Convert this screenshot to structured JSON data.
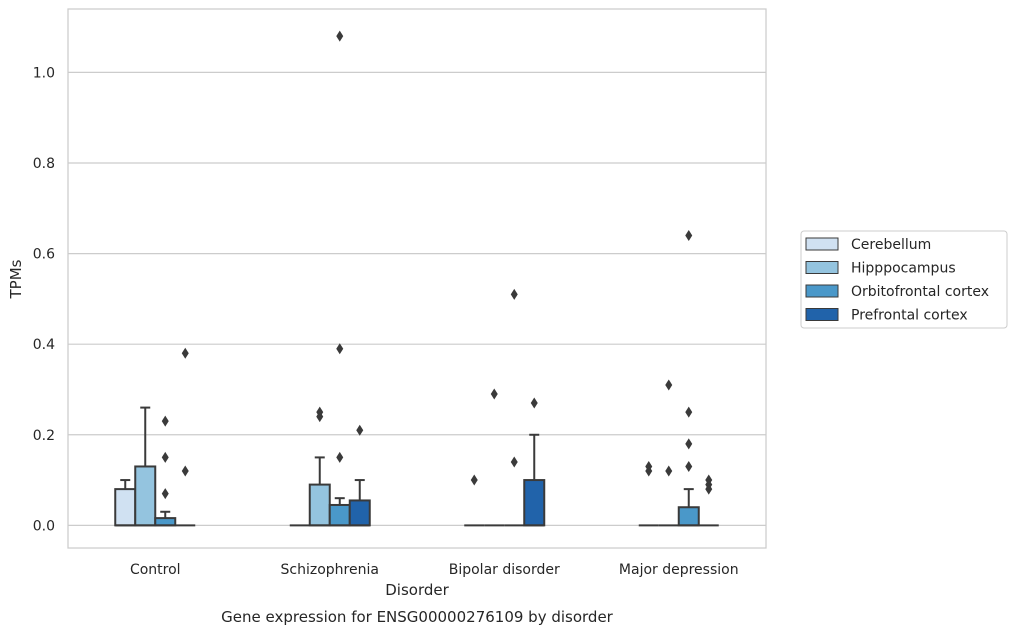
{
  "chart_data": {
    "type": "box",
    "caption": "Gene expression for ENSG00000276109 by disorder",
    "xlabel": "Disorder",
    "ylabel": "TPMs",
    "categories": [
      "Control",
      "Schizophrenia",
      "Bipolar disorder",
      "Major depression"
    ],
    "ylim": [
      -0.05,
      1.14
    ],
    "yticks": [
      0.0,
      0.2,
      0.4,
      0.6,
      0.8,
      1.0
    ],
    "ytick_labels": [
      "0.0",
      "0.2",
      "0.4",
      "0.6",
      "0.8",
      "1.0"
    ],
    "grid": true,
    "legend_position": "right",
    "series": [
      {
        "name": "Cerebellum",
        "color": "#d0e1f2",
        "boxes": [
          {
            "q1": 0.0,
            "median": 0.0,
            "q3": 0.08,
            "whisker_low": 0.0,
            "whisker_high": 0.1,
            "outliers": []
          },
          {
            "q1": 0.0,
            "median": 0.0,
            "q3": 0.0,
            "whisker_low": 0.0,
            "whisker_high": 0.0,
            "outliers": []
          },
          {
            "q1": 0.0,
            "median": 0.0,
            "q3": 0.0,
            "whisker_low": 0.0,
            "whisker_high": 0.0,
            "outliers": [
              0.1
            ]
          },
          {
            "q1": 0.0,
            "median": 0.0,
            "q3": 0.0,
            "whisker_low": 0.0,
            "whisker_high": 0.0,
            "outliers": [
              0.12,
              0.13
            ]
          }
        ]
      },
      {
        "name": "Hipppocampus",
        "color": "#94c4df",
        "boxes": [
          {
            "q1": 0.0,
            "median": 0.0,
            "q3": 0.13,
            "whisker_low": 0.0,
            "whisker_high": 0.26,
            "outliers": []
          },
          {
            "q1": 0.0,
            "median": 0.0,
            "q3": 0.09,
            "whisker_low": 0.0,
            "whisker_high": 0.15,
            "outliers": [
              0.24,
              0.25
            ]
          },
          {
            "q1": 0.0,
            "median": 0.0,
            "q3": 0.0,
            "whisker_low": 0.0,
            "whisker_high": 0.0,
            "outliers": [
              0.29
            ]
          },
          {
            "q1": 0.0,
            "median": 0.0,
            "q3": 0.0,
            "whisker_low": 0.0,
            "whisker_high": 0.0,
            "outliers": [
              0.12,
              0.31
            ]
          }
        ]
      },
      {
        "name": "Orbitofrontal cortex",
        "color": "#4a98c9",
        "boxes": [
          {
            "q1": 0.0,
            "median": 0.0,
            "q3": 0.016,
            "whisker_low": 0.0,
            "whisker_high": 0.03,
            "outliers": [
              0.07,
              0.15,
              0.23
            ]
          },
          {
            "q1": 0.0,
            "median": 0.0,
            "q3": 0.045,
            "whisker_low": 0.0,
            "whisker_high": 0.06,
            "outliers": [
              0.15,
              0.39,
              1.08
            ]
          },
          {
            "q1": 0.0,
            "median": 0.0,
            "q3": 0.0,
            "whisker_low": 0.0,
            "whisker_high": 0.0,
            "outliers": [
              0.14,
              0.51
            ]
          },
          {
            "q1": 0.0,
            "median": 0.0,
            "q3": 0.04,
            "whisker_low": 0.0,
            "whisker_high": 0.08,
            "outliers": [
              0.13,
              0.18,
              0.25,
              0.64
            ]
          }
        ]
      },
      {
        "name": "Prefrontal cortex",
        "color": "#2163aa",
        "boxes": [
          {
            "q1": 0.0,
            "median": 0.0,
            "q3": 0.0,
            "whisker_low": 0.0,
            "whisker_high": 0.0,
            "outliers": [
              0.12,
              0.38
            ]
          },
          {
            "q1": 0.0,
            "median": 0.0,
            "q3": 0.055,
            "whisker_low": 0.0,
            "whisker_high": 0.1,
            "outliers": [
              0.21
            ]
          },
          {
            "q1": 0.0,
            "median": 0.0,
            "q3": 0.1,
            "whisker_low": 0.0,
            "whisker_high": 0.2,
            "outliers": [
              0.27
            ]
          },
          {
            "q1": 0.0,
            "median": 0.0,
            "q3": 0.0,
            "whisker_low": 0.0,
            "whisker_high": 0.0,
            "outliers": [
              0.08,
              0.09,
              0.1
            ]
          }
        ]
      }
    ]
  }
}
